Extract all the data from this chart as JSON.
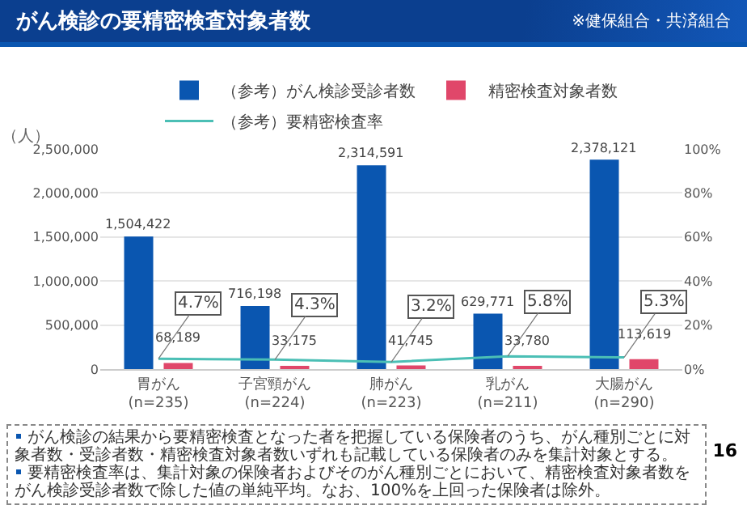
{
  "chart_data": {
    "type": "bar",
    "title": "がん検診の要精密検査対象者数",
    "subtitle": "※健保組合・共済組合",
    "ylabel": "（人）",
    "categories": [
      "胃がん(n=235)",
      "子宮頸がん(n=224)",
      "肺がん(n=223)",
      "乳がん(n=211)",
      "大腸がん(n=290)"
    ],
    "series": [
      {
        "name": "（参考）がん検診受診者数",
        "color": "#0a56b0",
        "values": [
          1504422,
          716198,
          2314591,
          629771,
          2378121
        ],
        "value_labels": [
          "1,504,422",
          "716,198",
          "2,314,591",
          "629,771",
          "2,378,121"
        ]
      },
      {
        "name": "精密検査対象者数",
        "color": "#e0476a",
        "values": [
          68189,
          33175,
          41745,
          33780,
          113619
        ],
        "value_labels": [
          "68,189",
          "33,175",
          "41,745",
          "33,780",
          "113,619"
        ]
      },
      {
        "name": "（参考）要精密検査率",
        "type": "line",
        "axis": "y2",
        "color": "#4bbfb5",
        "values": [
          4.7,
          4.3,
          3.2,
          5.8,
          5.3
        ],
        "value_labels": [
          "4.7%",
          "4.3%",
          "3.2%",
          "5.8%",
          "5.3%"
        ]
      }
    ],
    "ylim": [
      0,
      2500000
    ],
    "yticks": [
      0,
      {
        "value": 500000,
        "label": "500,000"
      },
      {
        "value": 1000000,
        "label": "1,000,000"
      },
      {
        "value": 1500000,
        "label": "1,500,000"
      },
      {
        "value": 2000000,
        "label": "2,000,000"
      },
      {
        "value": 2500000,
        "label": "2,500,000"
      }
    ],
    "y2lim": [
      0,
      100
    ],
    "y2ticks": [
      {
        "value": 0,
        "label": "0%"
      },
      {
        "value": 20,
        "label": "20%"
      },
      {
        "value": 40,
        "label": "40%"
      },
      {
        "value": 60,
        "label": "60%"
      },
      {
        "value": 80,
        "label": "80%"
      },
      {
        "value": 100,
        "label": "100%"
      }
    ],
    "grid": "y",
    "legend": "top",
    "marker": "none",
    "annotations": [
      "がん検診の結果から要精密検査となった者を把握している保険者のうち、がん種別ごとに対象者数・受診者数・精密検査対象者数いずれも記載している保険者のみを集計対象とする。",
      "要精密検査率は、集計対象の保険者およびそのがん種別ごとにおいて、精密検査対象者数をがん検診受診者数で除した値の単純平均。なお、100%を上回った保険者は除外。",
      "16"
    ]
  }
}
